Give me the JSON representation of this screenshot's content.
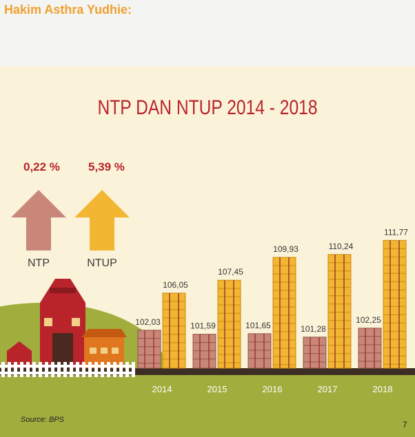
{
  "header": {
    "text": "Hakim Asthra Yudhie:"
  },
  "summary": {
    "ntp": {
      "label": "NTP",
      "change": "0,22 %"
    },
    "ntup": {
      "label": "NTUP",
      "change": "5,39 %"
    }
  },
  "footer": {
    "source": "Source: BPS",
    "page_number": "7"
  },
  "colors": {
    "title": "#b8242a",
    "ntp": "#c9877a",
    "ntup": "#f2b632",
    "ground": "#a1ad3d"
  },
  "chart_data": {
    "type": "bar",
    "title": "NTP DAN NTUP 2014 - 2018",
    "categories": [
      "2014",
      "2015",
      "2016",
      "2017",
      "2018"
    ],
    "series": [
      {
        "name": "NTP",
        "values": [
          102.03,
          101.59,
          101.65,
          101.28,
          102.25
        ],
        "labels": [
          "102,03",
          "101,59",
          "101,65",
          "101,28",
          "102,25"
        ]
      },
      {
        "name": "NTUP",
        "values": [
          106.05,
          107.45,
          109.93,
          110.24,
          111.77
        ],
        "labels": [
          "106,05",
          "107,45",
          "109,93",
          "110,24",
          "111,77"
        ]
      }
    ]
  }
}
